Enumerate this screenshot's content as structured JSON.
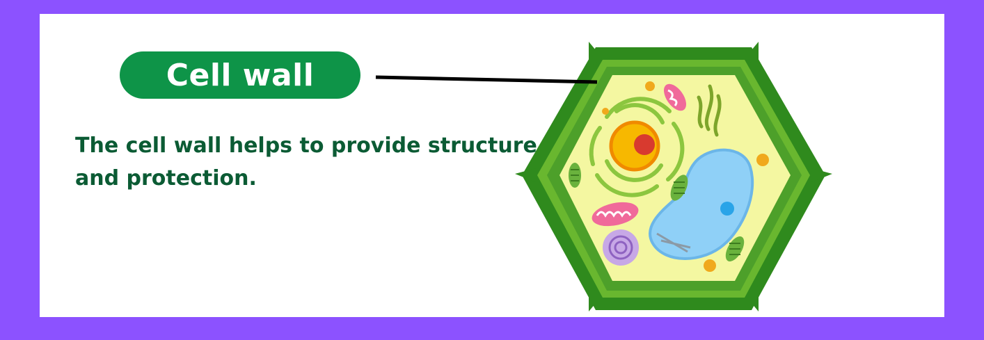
{
  "label": {
    "title": "Cell wall"
  },
  "description": {
    "text": "The cell wall helps to provide structure and protection."
  },
  "colors": {
    "frame": "#8c52ff",
    "panel": "#ffffff",
    "label_bg": "#0e9448",
    "label_text": "#ffffff",
    "description_text": "#0b5b34",
    "cell_wall_outer": "#2f8a1d",
    "cell_wall_inner": "#69b72f",
    "cytoplasm": "#f4f7a1",
    "vacuole": "#8fd0f7",
    "nucleus": "#f7b800",
    "nucleolus": "#d83a2f",
    "chloroplast": "#6ab23d",
    "mitochondria": "#f06a9a",
    "golgi": "#b695d8"
  },
  "icons": [
    "plant-cell-illustration",
    "leader-line"
  ]
}
